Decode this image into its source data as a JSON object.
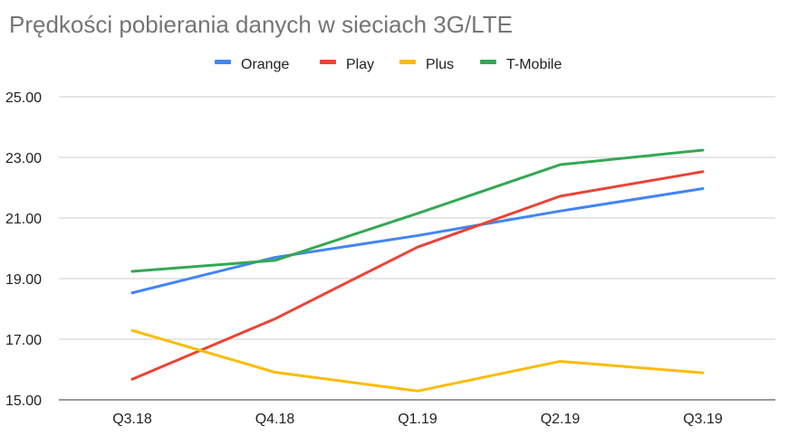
{
  "chart_data": {
    "type": "line",
    "title": "Prędkości pobierania danych w sieciach 3G/LTE",
    "xlabel": "",
    "ylabel": "",
    "categories": [
      "Q3.18",
      "Q4.18",
      "Q1.19",
      "Q2.19",
      "Q3.19"
    ],
    "yticks": [
      "15.00",
      "17.00",
      "19.00",
      "21.00",
      "23.00",
      "25.00"
    ],
    "ylim": [
      15,
      25
    ],
    "grid": true,
    "legend_position": "top",
    "series": [
      {
        "name": "Orange",
        "color": "#4285f4",
        "values": [
          18.53,
          19.7,
          20.42,
          21.23,
          21.97
        ]
      },
      {
        "name": "Play",
        "color": "#ea4335",
        "values": [
          15.68,
          17.67,
          20.04,
          21.72,
          22.53
        ]
      },
      {
        "name": "Plus",
        "color": "#fbbc04",
        "values": [
          17.29,
          15.91,
          15.29,
          16.27,
          15.89
        ]
      },
      {
        "name": "T-Mobile",
        "color": "#34a853",
        "values": [
          19.24,
          19.6,
          21.15,
          22.76,
          23.24
        ]
      }
    ]
  }
}
